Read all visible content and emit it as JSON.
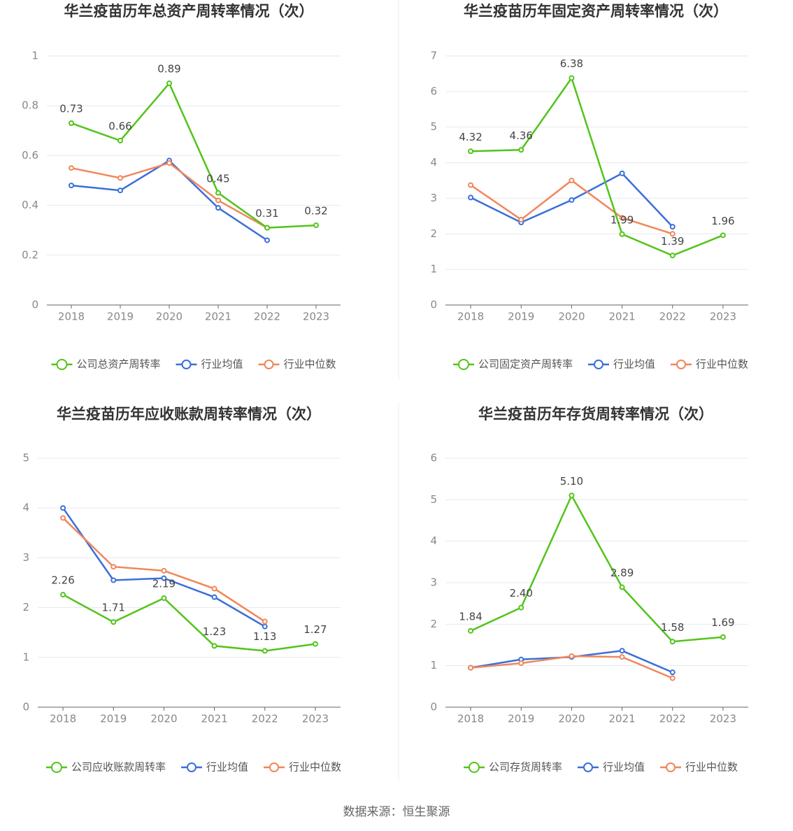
{
  "chart_data": [
    {
      "type": "line",
      "title": "华兰疫苗历年总资产周转率情况（次）",
      "categories": [
        "2018",
        "2019",
        "2020",
        "2021",
        "2022",
        "2023"
      ],
      "ylim": [
        0,
        1
      ],
      "yticks": [
        0,
        0.2,
        0.4,
        0.6,
        0.8,
        1
      ],
      "grid": true,
      "series": [
        {
          "name": "公司总资产周转率",
          "color": "#52c41a",
          "values": [
            0.73,
            0.66,
            0.89,
            0.45,
            0.31,
            0.32
          ],
          "value_labels": [
            "0.73",
            "0.66",
            "0.89",
            "0.45",
            "0.31",
            "0.32"
          ]
        },
        {
          "name": "行业均值",
          "color": "#3a6fd8",
          "values": [
            0.48,
            0.46,
            0.58,
            0.39,
            0.26,
            null
          ]
        },
        {
          "name": "行业中位数",
          "color": "#f0875a",
          "values": [
            0.55,
            0.51,
            0.57,
            0.42,
            0.31,
            null
          ]
        }
      ]
    },
    {
      "type": "line",
      "title": "华兰疫苗历年固定资产周转率情况（次）",
      "categories": [
        "2018",
        "2019",
        "2020",
        "2021",
        "2022",
        "2023"
      ],
      "ylim": [
        0,
        7
      ],
      "yticks": [
        0,
        1,
        2,
        3,
        4,
        5,
        6,
        7
      ],
      "grid": true,
      "series": [
        {
          "name": "公司固定资产周转率",
          "color": "#52c41a",
          "values": [
            4.32,
            4.36,
            6.38,
            1.99,
            1.39,
            1.96
          ],
          "value_labels": [
            "4.32",
            "4.36",
            "6.38",
            "1.99",
            "1.39",
            "1.96"
          ]
        },
        {
          "name": "行业均值",
          "color": "#3a6fd8",
          "values": [
            3.02,
            2.32,
            2.95,
            3.7,
            2.2,
            null
          ]
        },
        {
          "name": "行业中位数",
          "color": "#f0875a",
          "values": [
            3.37,
            2.4,
            3.5,
            2.45,
            2.0,
            null
          ]
        }
      ]
    },
    {
      "type": "line",
      "title": "华兰疫苗历年应收账款周转率情况（次）",
      "categories": [
        "2018",
        "2019",
        "2020",
        "2021",
        "2022",
        "2023"
      ],
      "ylim": [
        0,
        5
      ],
      "yticks": [
        0,
        1,
        2,
        3,
        4,
        5
      ],
      "grid": true,
      "series": [
        {
          "name": "公司应收账款周转率",
          "color": "#52c41a",
          "values": [
            2.26,
            1.71,
            2.19,
            1.23,
            1.13,
            1.27
          ],
          "value_labels": [
            "2.26",
            "1.71",
            "2.19",
            "1.23",
            "1.13",
            "1.27"
          ]
        },
        {
          "name": "行业均值",
          "color": "#3a6fd8",
          "values": [
            4.0,
            2.55,
            2.59,
            2.21,
            1.62,
            null
          ]
        },
        {
          "name": "行业中位数",
          "color": "#f0875a",
          "values": [
            3.8,
            2.82,
            2.74,
            2.38,
            1.72,
            null
          ]
        }
      ]
    },
    {
      "type": "line",
      "title": "华兰疫苗历年存货周转率情况（次）",
      "categories": [
        "2018",
        "2019",
        "2020",
        "2021",
        "2022",
        "2023"
      ],
      "ylim": [
        0,
        6
      ],
      "yticks": [
        0,
        1,
        2,
        3,
        4,
        5,
        6
      ],
      "grid": true,
      "series": [
        {
          "name": "公司存货周转率",
          "color": "#52c41a",
          "values": [
            1.84,
            2.4,
            5.1,
            2.89,
            1.58,
            1.69
          ],
          "value_labels": [
            "1.84",
            "2.40",
            "5.10",
            "2.89",
            "1.58",
            "1.69"
          ]
        },
        {
          "name": "行业均值",
          "color": "#3a6fd8",
          "values": [
            0.95,
            1.15,
            1.21,
            1.36,
            0.84,
            null
          ]
        },
        {
          "name": "行业中位数",
          "color": "#f0875a",
          "values": [
            0.95,
            1.06,
            1.23,
            1.21,
            0.7,
            null
          ]
        }
      ]
    }
  ],
  "source": "数据来源：恒生聚源"
}
